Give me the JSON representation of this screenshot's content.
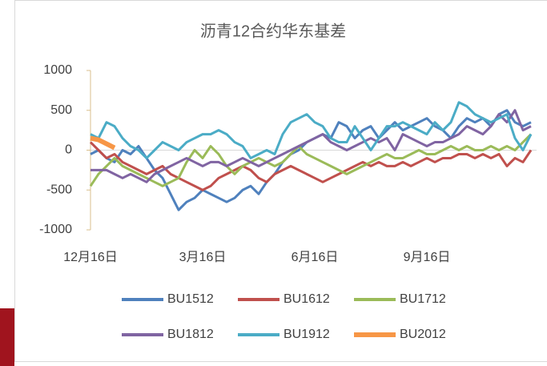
{
  "chart_data": {
    "type": "line",
    "title": "沥青12合约华东基差",
    "categories": [
      "12月16日",
      null,
      null,
      null,
      null,
      null,
      null,
      null,
      null,
      null,
      null,
      null,
      null,
      null,
      "3月16日",
      null,
      null,
      null,
      null,
      null,
      null,
      null,
      null,
      null,
      null,
      null,
      null,
      null,
      "6月16日",
      null,
      null,
      null,
      null,
      null,
      null,
      null,
      null,
      null,
      null,
      null,
      null,
      null,
      "9月16日",
      null,
      null,
      null,
      null,
      null,
      null,
      null,
      null,
      null,
      null,
      null,
      null,
      null
    ],
    "ylim": [
      -1000,
      1000
    ],
    "yticks": [
      1000,
      500,
      0,
      -500,
      -1000
    ],
    "grid": false,
    "legend": "bottom",
    "series": [
      {
        "name": "BU1512",
        "color": "#4f81bd",
        "values": [
          -50,
          0,
          -100,
          -150,
          0,
          -50,
          50,
          -100,
          -250,
          -350,
          -550,
          -750,
          -650,
          -600,
          -500,
          -550,
          -600,
          -650,
          -600,
          -500,
          -450,
          -550,
          -400,
          -300,
          -150,
          -50,
          0,
          100,
          150,
          200,
          150,
          350,
          300,
          150,
          250,
          300,
          150,
          250,
          350,
          250,
          300,
          350,
          400,
          300,
          250,
          150,
          300,
          400,
          350,
          400,
          300,
          450,
          500,
          350,
          300,
          350
        ]
      },
      {
        "name": "BU1612",
        "color": "#c0504d",
        "values": [
          100,
          0,
          -100,
          -50,
          -150,
          -200,
          -250,
          -300,
          -250,
          -200,
          -300,
          -350,
          -400,
          -450,
          -500,
          -450,
          -350,
          -300,
          -250,
          -200,
          -250,
          -350,
          -400,
          -300,
          -250,
          -200,
          -250,
          -300,
          -350,
          -400,
          -350,
          -300,
          -250,
          -200,
          -150,
          -200,
          -150,
          -200,
          -200,
          -150,
          -200,
          -150,
          -100,
          -150,
          -100,
          -100,
          -50,
          -50,
          -100,
          -50,
          -100,
          -50,
          -200,
          -100,
          -150,
          0
        ]
      },
      {
        "name": "BU1712",
        "color": "#9bbb59",
        "values": [
          -450,
          -300,
          -200,
          -100,
          -200,
          -250,
          -300,
          -350,
          -400,
          -450,
          -400,
          -350,
          -150,
          0,
          -100,
          50,
          -50,
          -200,
          -300,
          -200,
          -150,
          -100,
          -150,
          -200,
          -150,
          -50,
          50,
          -50,
          -100,
          -150,
          -200,
          -250,
          -300,
          -250,
          -200,
          -150,
          -100,
          -50,
          -100,
          -100,
          -50,
          0,
          -50,
          -50,
          0,
          50,
          0,
          50,
          0,
          0,
          50,
          0,
          50,
          0,
          100,
          200
        ]
      },
      {
        "name": "BU1812",
        "color": "#8064a2",
        "values": [
          -250,
          -250,
          -250,
          -300,
          -350,
          -300,
          -350,
          -400,
          -300,
          -250,
          -200,
          -150,
          -100,
          -150,
          -200,
          -150,
          -150,
          -200,
          -150,
          -100,
          -150,
          -200,
          -150,
          -100,
          -50,
          0,
          50,
          100,
          150,
          200,
          100,
          50,
          0,
          50,
          100,
          150,
          100,
          150,
          0,
          200,
          150,
          100,
          50,
          100,
          100,
          150,
          200,
          300,
          250,
          200,
          300,
          450,
          350,
          500,
          250,
          300
        ]
      },
      {
        "name": "BU1912",
        "color": "#4bacc6",
        "values": [
          200,
          150,
          350,
          300,
          150,
          50,
          0,
          -100,
          0,
          100,
          50,
          0,
          100,
          150,
          200,
          200,
          250,
          200,
          100,
          50,
          -100,
          -50,
          0,
          -50,
          200,
          350,
          400,
          450,
          350,
          300,
          150,
          100,
          100,
          300,
          150,
          0,
          150,
          300,
          300,
          350,
          300,
          250,
          200,
          350,
          250,
          350,
          600,
          550,
          450,
          400,
          350,
          400,
          450,
          150,
          0,
          200
        ]
      },
      {
        "name": "BU2012",
        "color": "#f79646",
        "values": [
          150,
          130,
          80,
          30,
          null,
          null,
          null,
          null,
          null,
          null,
          null,
          null,
          null,
          null,
          null,
          null,
          null,
          null,
          null,
          null,
          null,
          null,
          null,
          null,
          null,
          null,
          null,
          null,
          null,
          null,
          null,
          null,
          null,
          null,
          null,
          null,
          null,
          null,
          null,
          null,
          null,
          null,
          null,
          null,
          null,
          null,
          null,
          null,
          null,
          null,
          null,
          null,
          null,
          null,
          null,
          null
        ]
      }
    ]
  }
}
